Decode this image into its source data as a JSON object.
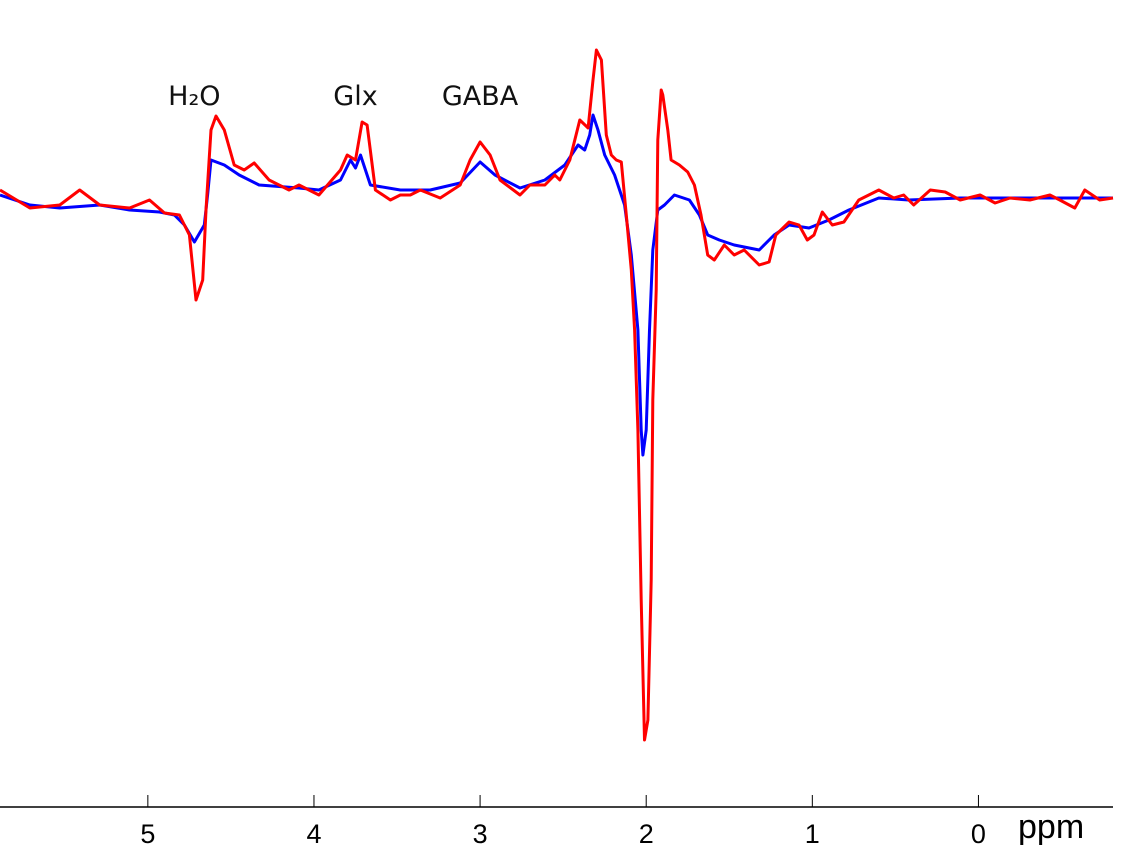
{
  "chart_data": {
    "type": "line",
    "title": "",
    "xlabel": "ppm",
    "ylabel": "",
    "x_reversed": true,
    "xlim": [
      5.89,
      -0.81
    ],
    "ylim": [
      -6.07,
      2.0
    ],
    "grid": false,
    "x_ticks": [
      5,
      4,
      3,
      2,
      1,
      0
    ],
    "x_tick_labels": [
      "5",
      "4",
      "3",
      "2",
      "1",
      "0"
    ],
    "annotations": [
      {
        "text": "H₂O",
        "ppm": 4.72
      },
      {
        "text": "Glx",
        "ppm": 3.75
      },
      {
        "text": "GABA",
        "ppm": 3.0
      }
    ],
    "series": [
      {
        "color": "#0000ff",
        "x": [
          5.89,
          5.71,
          5.53,
          5.29,
          5.11,
          4.93,
          4.84,
          4.78,
          4.72,
          4.66,
          4.64,
          4.62,
          4.54,
          4.45,
          4.33,
          4.09,
          3.97,
          3.84,
          3.78,
          3.75,
          3.72,
          3.66,
          3.48,
          3.3,
          3.12,
          3.0,
          2.91,
          2.76,
          2.61,
          2.49,
          2.41,
          2.37,
          2.34,
          2.32,
          2.29,
          2.25,
          2.19,
          2.13,
          2.09,
          2.05,
          2.03,
          2.02,
          2.0,
          1.98,
          1.96,
          1.93,
          1.89,
          1.83,
          1.74,
          1.68,
          1.63,
          1.56,
          1.47,
          1.32,
          1.23,
          1.14,
          1.02,
          0.9,
          0.78,
          0.6,
          0.42,
          0.11,
          -0.13,
          -0.43,
          -0.81
        ],
        "y": [
          0.05,
          -0.05,
          -0.08,
          -0.05,
          -0.1,
          -0.12,
          -0.15,
          -0.25,
          -0.42,
          -0.25,
          0.05,
          0.4,
          0.35,
          0.25,
          0.15,
          0.12,
          0.1,
          0.2,
          0.4,
          0.32,
          0.45,
          0.15,
          0.1,
          0.1,
          0.17,
          0.38,
          0.25,
          0.12,
          0.2,
          0.35,
          0.55,
          0.5,
          0.65,
          0.85,
          0.7,
          0.45,
          0.25,
          -0.05,
          -0.55,
          -1.3,
          -2.3,
          -2.55,
          -2.3,
          -1.3,
          -0.5,
          -0.1,
          -0.05,
          0.05,
          0.0,
          -0.15,
          -0.35,
          -0.4,
          -0.45,
          -0.5,
          -0.35,
          -0.25,
          -0.28,
          -0.2,
          -0.1,
          0.02,
          0.0,
          0.02,
          0.02,
          0.02,
          0.02
        ]
      },
      {
        "color": "#ff0000",
        "x": [
          5.89,
          5.71,
          5.53,
          5.41,
          5.29,
          5.11,
          4.99,
          4.9,
          4.81,
          4.75,
          4.71,
          4.67,
          4.65,
          4.62,
          4.59,
          4.54,
          4.48,
          4.42,
          4.36,
          4.27,
          4.15,
          4.09,
          3.97,
          3.84,
          3.8,
          3.75,
          3.71,
          3.68,
          3.63,
          3.54,
          3.48,
          3.42,
          3.36,
          3.24,
          3.12,
          3.06,
          3.0,
          2.94,
          2.88,
          2.76,
          2.7,
          2.61,
          2.55,
          2.52,
          2.46,
          2.4,
          2.35,
          2.32,
          2.3,
          2.27,
          2.24,
          2.21,
          2.18,
          2.15,
          2.12,
          2.09,
          2.07,
          2.05,
          2.03,
          2.01,
          1.99,
          1.97,
          1.96,
          1.94,
          1.93,
          1.91,
          1.9,
          1.87,
          1.85,
          1.8,
          1.75,
          1.71,
          1.67,
          1.63,
          1.59,
          1.53,
          1.47,
          1.41,
          1.32,
          1.26,
          1.22,
          1.14,
          1.08,
          1.03,
          0.99,
          0.94,
          0.88,
          0.81,
          0.72,
          0.6,
          0.51,
          0.45,
          0.39,
          0.29,
          0.2,
          0.11,
          -0.01,
          -0.1,
          -0.19,
          -0.31,
          -0.43,
          -0.49,
          -0.58,
          -0.64,
          -0.73,
          -0.81
        ],
        "y": [
          0.1,
          -0.08,
          -0.05,
          0.1,
          -0.05,
          -0.08,
          0.0,
          -0.13,
          -0.15,
          -0.35,
          -1.0,
          -0.8,
          -0.1,
          0.7,
          0.84,
          0.7,
          0.35,
          0.3,
          0.37,
          0.2,
          0.1,
          0.15,
          0.05,
          0.3,
          0.45,
          0.4,
          0.78,
          0.75,
          0.1,
          0.0,
          0.05,
          0.05,
          0.1,
          0.02,
          0.15,
          0.4,
          0.58,
          0.45,
          0.2,
          0.05,
          0.15,
          0.15,
          0.25,
          0.2,
          0.4,
          0.8,
          0.72,
          1.2,
          1.5,
          1.4,
          0.65,
          0.45,
          0.4,
          0.38,
          -0.15,
          -0.7,
          -1.3,
          -2.3,
          -4.0,
          -5.4,
          -5.2,
          -3.8,
          -2.0,
          -0.9,
          0.6,
          1.1,
          1.05,
          0.7,
          0.4,
          0.35,
          0.28,
          0.15,
          -0.15,
          -0.55,
          -0.6,
          -0.45,
          -0.55,
          -0.5,
          -0.65,
          -0.62,
          -0.35,
          -0.22,
          -0.25,
          -0.4,
          -0.35,
          -0.12,
          -0.25,
          -0.22,
          0.0,
          0.1,
          0.02,
          0.05,
          -0.05,
          0.1,
          0.08,
          0.0,
          0.05,
          -0.03,
          0.02,
          0.0,
          0.05,
          0.0,
          -0.08,
          0.1,
          0.0,
          0.02
        ]
      }
    ]
  }
}
